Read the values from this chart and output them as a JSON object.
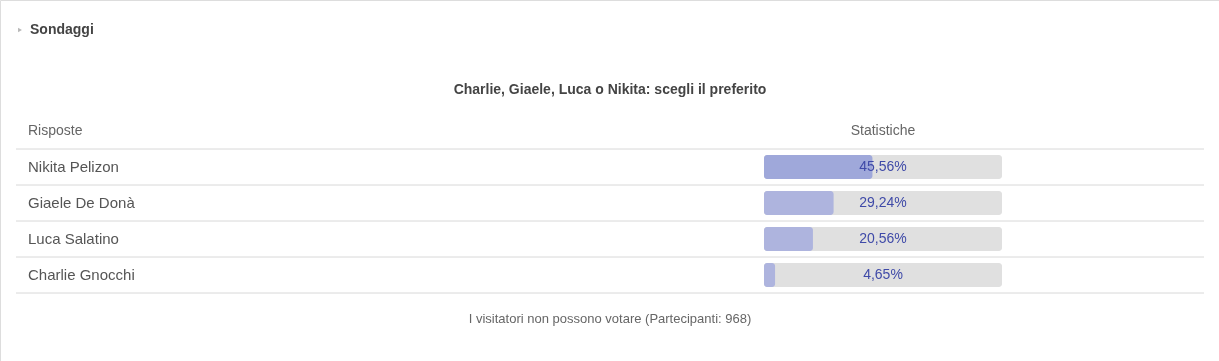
{
  "chart_data": {
    "type": "bar",
    "orientation": "horizontal",
    "title": "Sondaggi",
    "subtitle": "Charlie, Giaele, Luca o Nikita: scegli il preferito",
    "ylabel": "Risposte",
    "xlabel": "Statistiche",
    "categories": [
      "Nikita Pelizon",
      "Giaele De Donà",
      "Luca Salatino",
      "Charlie Gnocchi"
    ],
    "values": [
      45.56,
      29.24,
      20.56,
      4.65
    ],
    "colors": [
      "#9fa8da",
      "#aeb4de",
      "#aeb4de",
      "#aeb4de"
    ],
    "value_labels": [
      "45,56%",
      "29,24%",
      "20,56%",
      "4,65%"
    ],
    "xlim": [
      0,
      100
    ],
    "annotations": [
      "I visitatori non possono votare (Partecipanti: 968)"
    ]
  }
}
